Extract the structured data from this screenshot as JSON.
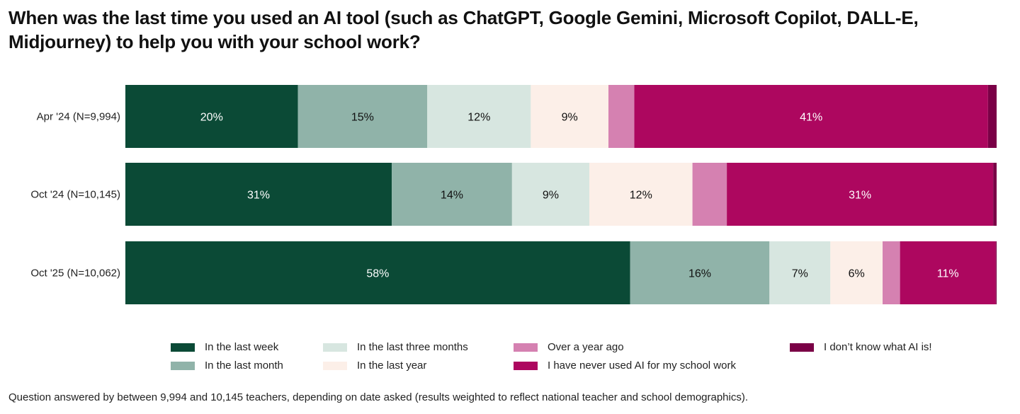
{
  "chart_data": {
    "type": "bar",
    "orientation": "horizontal-stacked-100",
    "title": "When was the last time you used an AI tool (such as ChatGPT, Google Gemini, Microsoft Copilot, DALL-E, Midjourney) to help you with your school work?",
    "categories": [
      "Apr '24 (N=9,994)",
      "Oct '24 (N=10,145)",
      "Oct '25 (N=10,062)"
    ],
    "series": [
      {
        "name": "In the last week",
        "color": "#0b4a36",
        "text_color": "#ffffff",
        "values": [
          20,
          31,
          58
        ],
        "labels": [
          "20%",
          "31%",
          "58%"
        ]
      },
      {
        "name": "In the last month",
        "color": "#90b3a9",
        "text_color": "#111111",
        "values": [
          15,
          14,
          16
        ],
        "labels": [
          "15%",
          "14%",
          "16%"
        ]
      },
      {
        "name": "In the last three months",
        "color": "#d7e6e0",
        "text_color": "#111111",
        "values": [
          12,
          9,
          7
        ],
        "labels": [
          "12%",
          "9%",
          "7%"
        ]
      },
      {
        "name": "In the last year",
        "color": "#fcefe8",
        "text_color": "#111111",
        "values": [
          9,
          12,
          6
        ],
        "labels": [
          "9%",
          "12%",
          "6%"
        ]
      },
      {
        "name": "Over a year ago",
        "color": "#d581b1",
        "text_color": "#111111",
        "values": [
          3,
          4,
          2
        ],
        "labels": [
          "",
          "",
          ""
        ]
      },
      {
        "name": "I have never used AI for my school work",
        "color": "#ad075f",
        "text_color": "#ffffff",
        "values": [
          41,
          31,
          11
        ],
        "labels": [
          "41%",
          "31%",
          "11%"
        ]
      },
      {
        "name": "I don’t know what AI is!",
        "color": "#7a0046",
        "text_color": "#ffffff",
        "values": [
          1,
          0.4,
          0.1
        ],
        "labels": [
          "",
          "",
          ""
        ]
      }
    ],
    "xlim": [
      0,
      100
    ],
    "grid": false,
    "legend_placement": "bottom"
  },
  "legend_order": [
    0,
    2,
    4,
    6,
    1,
    3,
    5
  ],
  "footer": "Question answered by between 9,994 and 10,145 teachers, depending on date asked (results weighted to reflect national teacher and school demographics)."
}
